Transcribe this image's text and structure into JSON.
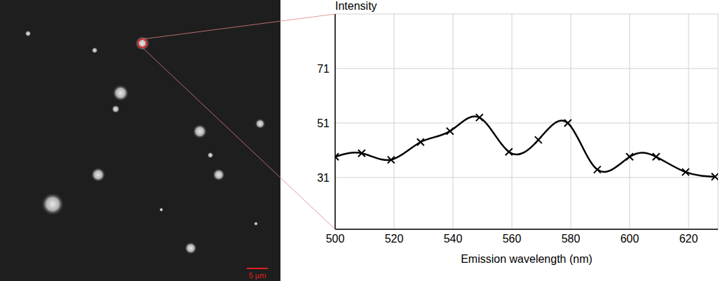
{
  "chart_data": {
    "type": "line",
    "y_label": "Intensity",
    "x_label": "Emission wavelength (nm)",
    "x": [
      500,
      509,
      519,
      529,
      539,
      549,
      559,
      569,
      579,
      589,
      600,
      609,
      619,
      629
    ],
    "values": [
      38.6,
      39.9,
      37.5,
      44,
      48,
      53,
      40.4,
      44.8,
      51,
      33.9,
      38.6,
      38.6,
      33,
      31.3
    ],
    "color": "#000000",
    "marker": "x",
    "line_style": "solid",
    "xlim": [
      500,
      630
    ],
    "xticks": [
      500,
      520,
      540,
      560,
      580,
      600,
      620
    ],
    "ylim": [
      12,
      91
    ],
    "yticks": [
      31,
      51,
      71
    ],
    "grid": true
  },
  "image": {
    "scale_bar_label": "5 µm"
  }
}
